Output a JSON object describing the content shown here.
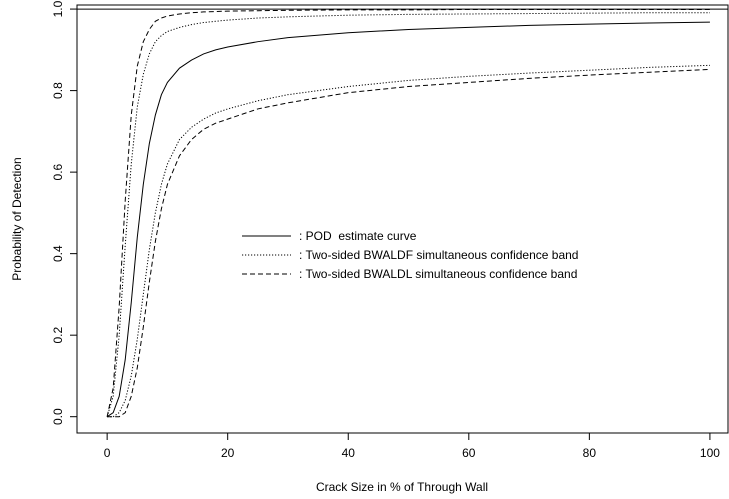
{
  "chart_data": {
    "type": "line",
    "xlabel": "Crack Size in % of Through Wall",
    "ylabel": "Probability of Detection",
    "xlim": [
      -5,
      103
    ],
    "ylim": [
      -0.04,
      1.01
    ],
    "xticks": [
      0,
      20,
      40,
      60,
      80,
      100
    ],
    "xtick_labels": [
      "0",
      "20",
      "40",
      "60",
      "80",
      "100"
    ],
    "yticks": [
      0.0,
      0.2,
      0.4,
      0.6,
      0.8,
      1.0
    ],
    "ytick_labels": [
      "0.0",
      "0.2",
      "0.4",
      "0.6",
      "0.8",
      "1.0"
    ],
    "grid": false,
    "legend_position": "center",
    "reference_line": {
      "y": 1.0,
      "style": "solid"
    },
    "series": [
      {
        "name": ": POD  estimate curve",
        "style": "solid",
        "x": [
          0,
          1,
          2,
          3,
          4,
          5,
          6,
          7,
          8,
          9,
          10,
          12,
          14,
          16,
          18,
          20,
          25,
          30,
          40,
          50,
          60,
          70,
          80,
          90,
          100
        ],
        "y": [
          0.0,
          0.01,
          0.05,
          0.14,
          0.28,
          0.44,
          0.57,
          0.67,
          0.74,
          0.79,
          0.82,
          0.855,
          0.875,
          0.89,
          0.9,
          0.907,
          0.92,
          0.93,
          0.942,
          0.95,
          0.955,
          0.96,
          0.963,
          0.966,
          0.968
        ]
      },
      {
        "name": ": Two-sided BWALDF simultaneous confidence band",
        "style": "dotted",
        "x": [
          0,
          1,
          2,
          3,
          4,
          5,
          6,
          7,
          8,
          9,
          10,
          12,
          14,
          16,
          18,
          20,
          25,
          30,
          40,
          50,
          60,
          70,
          80,
          90,
          100
        ],
        "y": [
          0.0,
          0.05,
          0.2,
          0.42,
          0.62,
          0.76,
          0.84,
          0.89,
          0.92,
          0.935,
          0.945,
          0.955,
          0.962,
          0.967,
          0.97,
          0.973,
          0.978,
          0.981,
          0.985,
          0.987,
          0.988,
          0.989,
          0.99,
          0.991,
          0.991
        ]
      },
      {
        "name": "",
        "style": "dotted",
        "x": [
          0,
          1,
          2,
          3,
          4,
          5,
          6,
          7,
          8,
          9,
          10,
          12,
          14,
          16,
          18,
          20,
          25,
          30,
          40,
          50,
          60,
          70,
          80,
          90,
          100
        ],
        "y": [
          0.0,
          0.0,
          0.01,
          0.04,
          0.1,
          0.19,
          0.3,
          0.41,
          0.5,
          0.57,
          0.62,
          0.68,
          0.71,
          0.73,
          0.745,
          0.755,
          0.775,
          0.79,
          0.81,
          0.825,
          0.835,
          0.843,
          0.85,
          0.857,
          0.862
        ]
      },
      {
        "name": ": Two-sided BWALDL simultaneous confidence band",
        "style": "dashed",
        "x": [
          0,
          1,
          2,
          3,
          4,
          5,
          6,
          7,
          8,
          9,
          10,
          12,
          14,
          16,
          18,
          20,
          25,
          30,
          40,
          50,
          60,
          70,
          80,
          90,
          100
        ],
        "y": [
          0.0,
          0.07,
          0.27,
          0.53,
          0.74,
          0.86,
          0.92,
          0.95,
          0.97,
          0.978,
          0.983,
          0.988,
          0.991,
          0.993,
          0.994,
          0.995,
          0.996,
          0.997,
          0.998,
          0.998,
          0.999,
          0.999,
          0.999,
          0.999,
          0.999
        ]
      },
      {
        "name": "",
        "style": "dashed",
        "x": [
          0,
          1,
          2,
          3,
          4,
          5,
          6,
          7,
          8,
          9,
          10,
          12,
          14,
          16,
          18,
          20,
          25,
          30,
          40,
          50,
          60,
          70,
          80,
          90,
          100
        ],
        "y": [
          0.0,
          0.0,
          0.0,
          0.01,
          0.05,
          0.12,
          0.22,
          0.33,
          0.43,
          0.51,
          0.57,
          0.64,
          0.68,
          0.705,
          0.72,
          0.73,
          0.755,
          0.77,
          0.795,
          0.81,
          0.82,
          0.83,
          0.838,
          0.845,
          0.852
        ]
      }
    ],
    "legend": [
      {
        "label": ": POD  estimate curve",
        "style": "solid"
      },
      {
        "label": ": Two-sided BWALDF simultaneous confidence band",
        "style": "dotted"
      },
      {
        "label": ": Two-sided BWALDL simultaneous confidence band",
        "style": "dashed"
      }
    ]
  }
}
